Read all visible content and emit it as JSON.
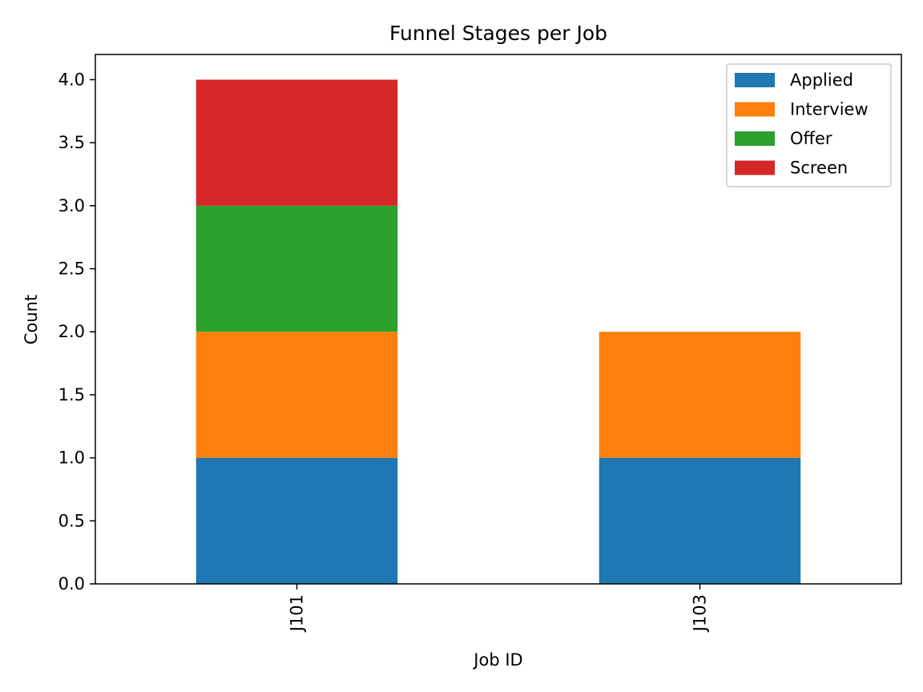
{
  "chart_data": {
    "type": "bar",
    "stacked": true,
    "title": "Funnel Stages per Job",
    "xlabel": "Job ID",
    "ylabel": "Count",
    "categories": [
      "J101",
      "J103"
    ],
    "ylim": [
      0,
      4.2
    ],
    "yticks": [
      "0.0",
      "0.5",
      "1.0",
      "1.5",
      "2.0",
      "2.5",
      "3.0",
      "3.5",
      "4.0"
    ],
    "legend_position": "top-right",
    "series": [
      {
        "name": "Applied",
        "color": "#1f77b4",
        "values": [
          1,
          1
        ]
      },
      {
        "name": "Interview",
        "color": "#ff7f0e",
        "values": [
          1,
          1
        ]
      },
      {
        "name": "Offer",
        "color": "#2ca02c",
        "values": [
          1,
          0
        ]
      },
      {
        "name": "Screen",
        "color": "#d62728",
        "values": [
          1,
          0
        ]
      }
    ]
  }
}
